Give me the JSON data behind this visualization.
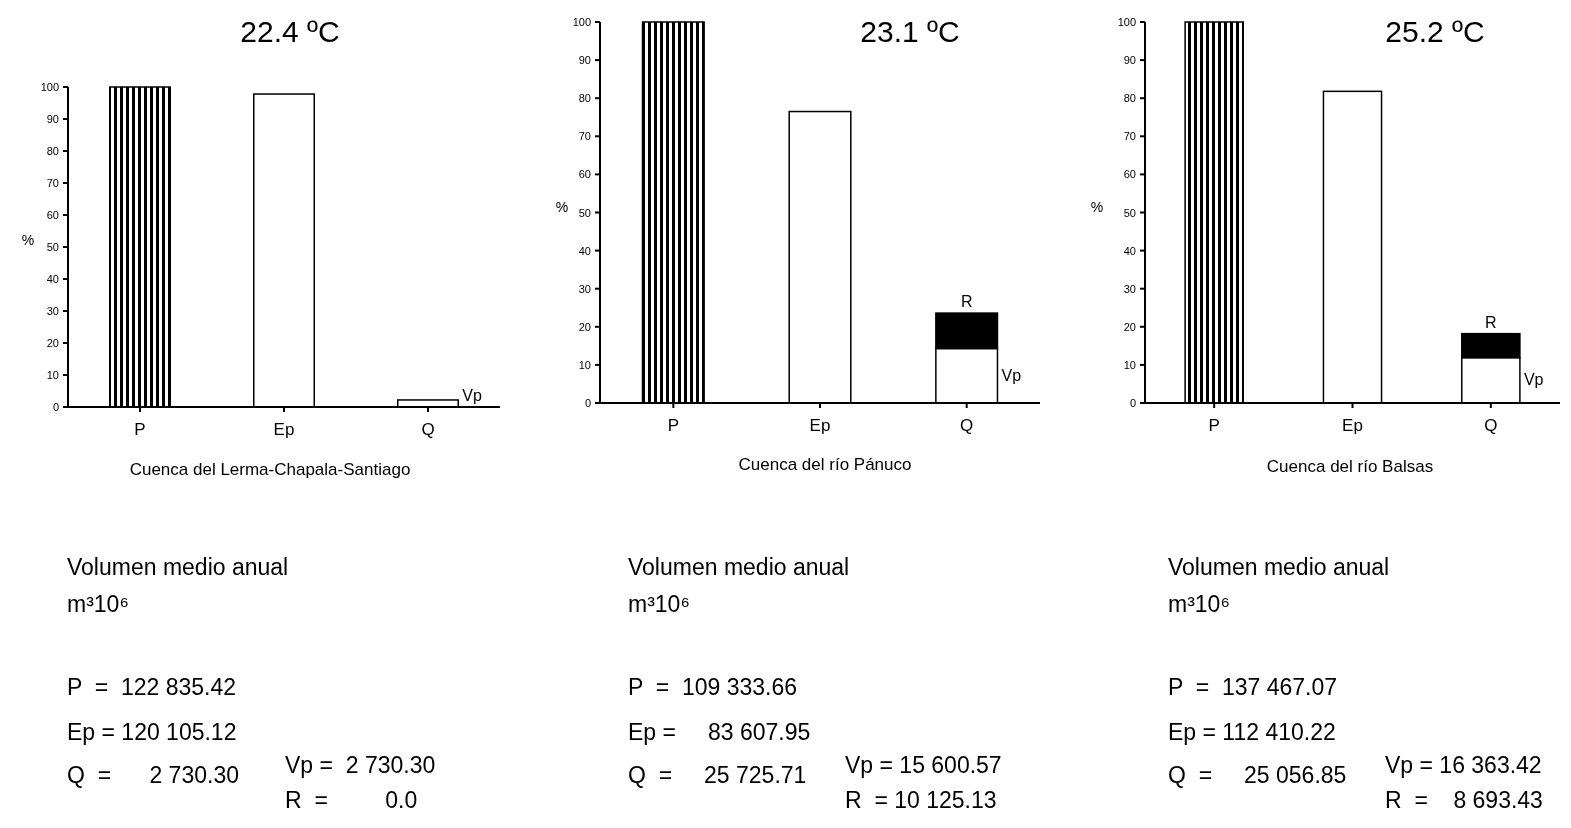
{
  "chart_data": [
    {
      "type": "bar",
      "title": "22.4 ºC",
      "xlabel": "Cuenca del Lerma-Chapala-Santiago",
      "ylabel": "%",
      "categories": [
        "P",
        "Ep",
        "Q"
      ],
      "stacked": true,
      "ylim": [
        0,
        100
      ],
      "yticks": [
        0,
        10,
        20,
        30,
        40,
        50,
        60,
        70,
        80,
        90,
        100
      ],
      "series": [
        {
          "colors": [
            "#000000",
            "#ffffff",
            null
          ],
          "values": [
            100,
            97.8,
            null
          ]
        },
        {
          "name": "Vp",
          "color": "#ffffff",
          "values": [
            null,
            null,
            2.2
          ]
        }
      ],
      "annotations": [
        "Volumen medio anual",
        "m³10⁶",
        "P  =  122 835.42",
        "Ep = 120 105.12",
        "Q  =      2 730.30",
        "Vp =  2 730.30",
        "R  =         0.0"
      ]
    },
    {
      "type": "bar",
      "title": "23.1 ºC",
      "xlabel": "Cuenca del río Pánuco",
      "ylabel": "%",
      "categories": [
        "P",
        "Ep",
        "Q"
      ],
      "stacked": true,
      "ylim": [
        0,
        100
      ],
      "yticks": [
        0,
        10,
        20,
        30,
        40,
        50,
        60,
        70,
        80,
        90,
        100
      ],
      "series": [
        {
          "colors": [
            "#000000",
            "#ffffff",
            null
          ],
          "values": [
            100,
            76.5,
            null
          ]
        },
        {
          "name": "Vp",
          "color": "#ffffff",
          "values": [
            null,
            null,
            14.3
          ]
        },
        {
          "name": "R",
          "color": "#000000",
          "values": [
            null,
            null,
            9.3
          ]
        }
      ],
      "annotations": [
        "Volumen medio anual",
        "m³10⁶",
        "P  =  109 333.66",
        "Ep =     83 607.95",
        "Q  =     25 725.71",
        "Vp = 15 600.57",
        "R  = 10 125.13"
      ]
    },
    {
      "type": "bar",
      "title": "25.2 ºC",
      "xlabel": "Cuenca del río Balsas",
      "ylabel": "%",
      "categories": [
        "P",
        "Ep",
        "Q"
      ],
      "stacked": true,
      "ylim": [
        0,
        100
      ],
      "yticks": [
        0,
        10,
        20,
        30,
        40,
        50,
        60,
        70,
        80,
        90,
        100
      ],
      "series": [
        {
          "colors": [
            "#000000",
            "#ffffff",
            null
          ],
          "values": [
            100,
            81.8,
            null
          ]
        },
        {
          "name": "Vp",
          "color": "#ffffff",
          "values": [
            null,
            null,
            11.9
          ]
        },
        {
          "name": "R",
          "color": "#000000",
          "values": [
            null,
            null,
            6.3
          ]
        }
      ],
      "annotations": [
        "Volumen medio anual",
        "m³10⁶",
        "P  =  137 467.07",
        "Ep = 112 410.22",
        "Q  =     25 056.85",
        "Vp = 16 363.42",
        "R  =    8 693.43"
      ]
    }
  ]
}
